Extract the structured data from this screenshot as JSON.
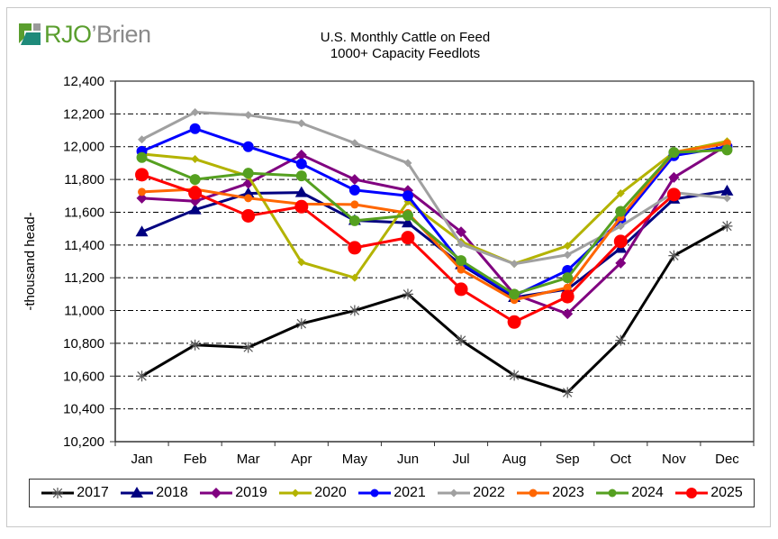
{
  "brand": {
    "name_part1": "RJO",
    "name_part2": "’Brien",
    "colors": {
      "green": "#5a9e2e",
      "gray": "#9a9a9a",
      "teal": "#1e8a7a"
    }
  },
  "chart_data": {
    "type": "line",
    "title": "U.S. Monthly Cattle on Feed",
    "subtitle": "1000+ Capacity Feedlots",
    "xlabel": "",
    "ylabel": "-thousand head-",
    "categories": [
      "Jan",
      "Feb",
      "Mar",
      "Apr",
      "May",
      "Jun",
      "Jul",
      "Aug",
      "Sep",
      "Oct",
      "Nov",
      "Dec"
    ],
    "ylim": [
      10200,
      12400
    ],
    "yticks": [
      10200,
      10400,
      10600,
      10800,
      11000,
      11200,
      11400,
      11600,
      11800,
      12000,
      12200,
      12400
    ],
    "ytick_labels": [
      "10,200",
      "10,400",
      "10,600",
      "10,800",
      "11,000",
      "11,200",
      "11,400",
      "11,600",
      "11,800",
      "12,000",
      "12,200",
      "12,400"
    ],
    "grid": true,
    "legend_position": "bottom",
    "series": [
      {
        "name": "2017",
        "color": "#000000",
        "marker": "star",
        "values": [
          10600,
          10790,
          10775,
          10920,
          11000,
          11100,
          10818,
          10605,
          10500,
          10818,
          11335,
          11515
        ]
      },
      {
        "name": "2018",
        "color": "#000080",
        "marker": "triangle",
        "values": [
          11480,
          11615,
          11715,
          11720,
          11550,
          11535,
          11280,
          11080,
          11130,
          11380,
          11680,
          11730
        ]
      },
      {
        "name": "2019",
        "color": "#800080",
        "marker": "diamond",
        "values": [
          11686,
          11667,
          11776,
          11950,
          11800,
          11733,
          11480,
          11100,
          10980,
          11290,
          11812,
          12010
        ]
      },
      {
        "name": "2020",
        "color": "#b3b300",
        "marker": "small-diamond",
        "values": [
          11955,
          11924,
          11820,
          11295,
          11200,
          11665,
          11420,
          11285,
          11395,
          11715,
          11965,
          12033
        ]
      },
      {
        "name": "2021",
        "color": "#0000ff",
        "marker": "circle",
        "values": [
          11972,
          12110,
          12000,
          11895,
          11735,
          11700,
          11290,
          11090,
          11245,
          11550,
          11945,
          12000
        ]
      },
      {
        "name": "2022",
        "color": "#a0a0a0",
        "marker": "small-diamond",
        "values": [
          12044,
          12210,
          12193,
          12143,
          12022,
          11900,
          11405,
          11285,
          11340,
          11515,
          11720,
          11686
        ]
      },
      {
        "name": "2023",
        "color": "#ff6600",
        "marker": "small-circle",
        "values": [
          11724,
          11740,
          11686,
          11650,
          11647,
          11595,
          11250,
          11065,
          11140,
          11570,
          11965,
          12020
        ]
      },
      {
        "name": "2024",
        "color": "#55a020",
        "marker": "circle",
        "values": [
          11934,
          11800,
          11838,
          11822,
          11548,
          11580,
          11305,
          11100,
          11200,
          11605,
          11965,
          11980
        ]
      },
      {
        "name": "2025",
        "color": "#ff0000",
        "marker": "large-circle",
        "values": [
          11829,
          11717,
          11578,
          11634,
          11383,
          11445,
          11130,
          10930,
          11085,
          11422,
          11708,
          null
        ]
      }
    ]
  }
}
